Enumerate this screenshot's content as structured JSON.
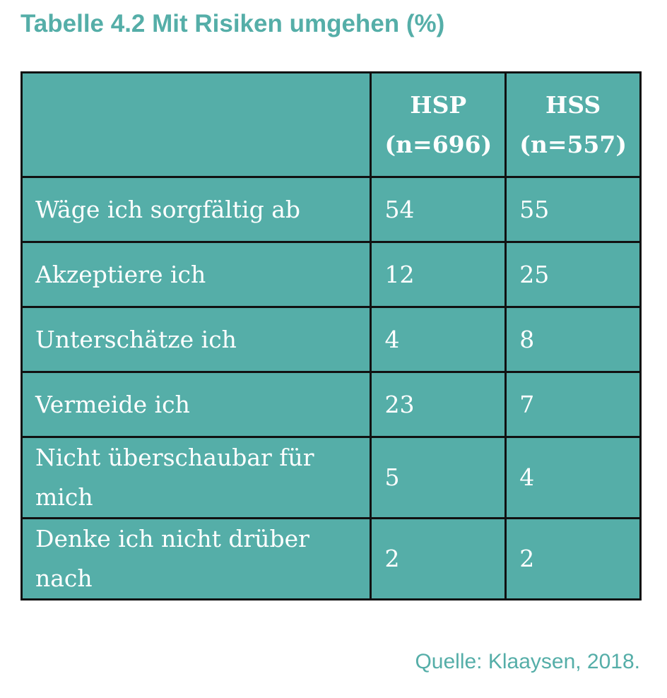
{
  "title": "Tabelle 4.2 Mit Risiken umgehen (%)",
  "table": {
    "headers": [
      {
        "label": "",
        "sub": ""
      },
      {
        "label": "HSP",
        "sub": "(n=696)"
      },
      {
        "label": "HSS",
        "sub": "(n=557)"
      }
    ],
    "rows": [
      {
        "label": "Wäge ich sorgfältig ab",
        "hsp": "54",
        "hss": "55"
      },
      {
        "label": "Akzeptiere ich",
        "hsp": "12",
        "hss": "25"
      },
      {
        "label": "Unterschätze ich",
        "hsp": "4",
        "hss": "8"
      },
      {
        "label": "Vermeide ich",
        "hsp": "23",
        "hss": "7"
      },
      {
        "label": "Nicht überschaubar für mich",
        "hsp": "5",
        "hss": "4"
      },
      {
        "label": "Denke ich nicht drüber nach",
        "hsp": "2",
        "hss": "2"
      }
    ]
  },
  "source": "Quelle: Klaaysen, 2018.",
  "colors": {
    "accent": "#55aea8",
    "border": "#111111",
    "cell_text": "#ffffff"
  }
}
